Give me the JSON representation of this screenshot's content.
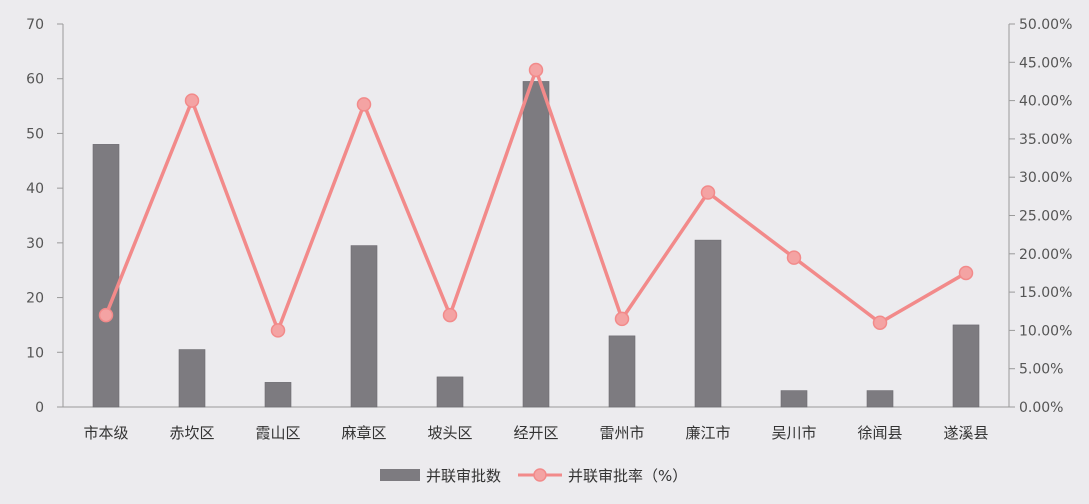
{
  "chart_data": {
    "type": "bar+line",
    "categories": [
      "市本级",
      "赤坎区",
      "霞山区",
      "麻章区",
      "坡头区",
      "经开区",
      "雷州市",
      "廉江市",
      "吴川市",
      "徐闻县",
      "遂溪县"
    ],
    "series": [
      {
        "name": "并联审批数",
        "type": "bar",
        "axis": "left",
        "color": "#7d7b80",
        "values": [
          48,
          10.5,
          4.5,
          29.5,
          5.5,
          59.5,
          13,
          30.5,
          3,
          3,
          15
        ]
      },
      {
        "name": "并联审批率（%）",
        "type": "line",
        "axis": "right",
        "color": "#f28a8a",
        "values": [
          0.12,
          0.4,
          0.1,
          0.395,
          0.12,
          0.44,
          0.115,
          0.28,
          0.195,
          0.11,
          0.175
        ]
      }
    ],
    "left_axis": {
      "min": 0,
      "max": 70,
      "step": 10,
      "tick_labels": [
        "0",
        "10",
        "20",
        "30",
        "40",
        "50",
        "60",
        "70"
      ]
    },
    "right_axis": {
      "min": 0,
      "max": 0.5,
      "step": 0.05,
      "tick_labels": [
        "0.00%",
        "5.00%",
        "10.00%",
        "15.00%",
        "20.00%",
        "25.00%",
        "30.00%",
        "35.00%",
        "40.00%",
        "45.00%",
        "50.00%"
      ]
    },
    "legend_position": "bottom-center",
    "grid": false
  }
}
